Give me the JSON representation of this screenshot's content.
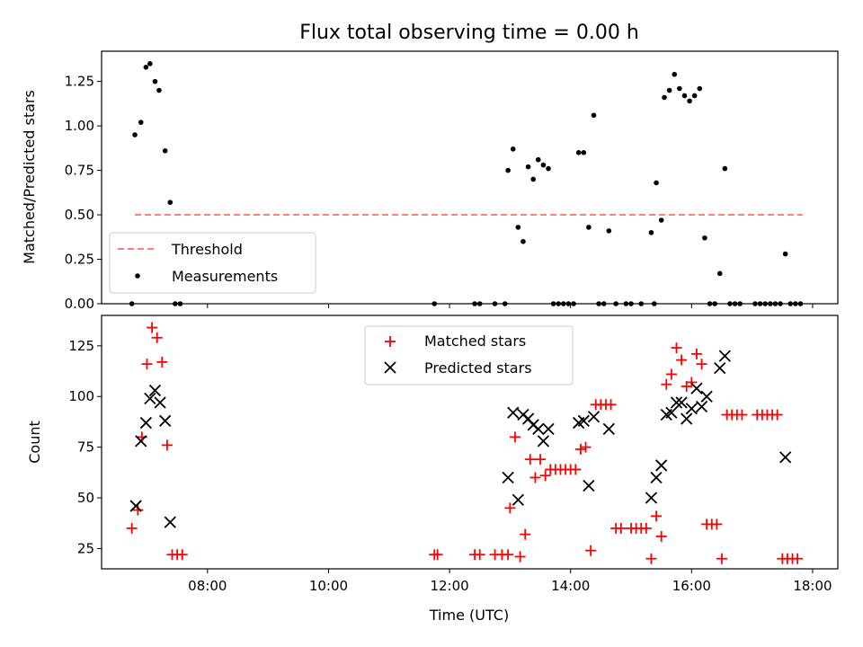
{
  "chart_data": [
    {
      "type": "scatter",
      "title": "Flux total observing time = 0.00 h",
      "xlabel": "",
      "ylabel": "Matched/Predicted stars",
      "xlim": [
        "06:15",
        "18:25"
      ],
      "ylim": [
        0,
        1.42
      ],
      "yticks": [
        0.0,
        0.25,
        0.5,
        0.75,
        1.0,
        1.25
      ],
      "ytick_labels": [
        "0.00",
        "0.25",
        "0.50",
        "0.75",
        "1.00",
        "1.25"
      ],
      "legend": {
        "placement": "lower-left",
        "entries": [
          "Threshold",
          "Measurements"
        ]
      },
      "threshold": {
        "name": "Threshold",
        "value": 0.5,
        "x_start": "06:48",
        "x_end": "17:50",
        "color": "#ff7f7f"
      },
      "series": [
        {
          "name": "Measurements",
          "color": "#000000",
          "points": [
            [
              "06:45",
              0.0
            ],
            [
              "06:48",
              0.95
            ],
            [
              "06:54",
              1.02
            ],
            [
              "06:59",
              1.33
            ],
            [
              "07:03",
              1.35
            ],
            [
              "07:08",
              1.25
            ],
            [
              "07:12",
              1.2
            ],
            [
              "07:18",
              0.86
            ],
            [
              "07:23",
              0.57
            ],
            [
              "07:28",
              0.0
            ],
            [
              "07:33",
              0.0
            ],
            [
              "11:45",
              0.0
            ],
            [
              "12:25",
              0.0
            ],
            [
              "12:30",
              0.0
            ],
            [
              "12:45",
              0.0
            ],
            [
              "12:55",
              0.0
            ],
            [
              "12:58",
              0.75
            ],
            [
              "13:03",
              0.87
            ],
            [
              "13:08",
              0.43
            ],
            [
              "13:13",
              0.35
            ],
            [
              "13:18",
              0.77
            ],
            [
              "13:23",
              0.7
            ],
            [
              "13:28",
              0.81
            ],
            [
              "13:33",
              0.78
            ],
            [
              "13:38",
              0.76
            ],
            [
              "13:43",
              0.0
            ],
            [
              "13:48",
              0.0
            ],
            [
              "13:53",
              0.0
            ],
            [
              "13:58",
              0.0
            ],
            [
              "14:03",
              0.0
            ],
            [
              "14:08",
              0.85
            ],
            [
              "14:13",
              0.85
            ],
            [
              "14:18",
              0.43
            ],
            [
              "14:23",
              1.06
            ],
            [
              "14:28",
              0.0
            ],
            [
              "14:33",
              0.0
            ],
            [
              "14:38",
              0.41
            ],
            [
              "14:45",
              0.0
            ],
            [
              "14:55",
              0.0
            ],
            [
              "15:00",
              0.0
            ],
            [
              "15:10",
              0.0
            ],
            [
              "15:20",
              0.4
            ],
            [
              "15:23",
              0.0
            ],
            [
              "15:25",
              0.68
            ],
            [
              "15:30",
              0.47
            ],
            [
              "15:33",
              1.16
            ],
            [
              "15:38",
              1.2
            ],
            [
              "15:43",
              1.29
            ],
            [
              "15:48",
              1.21
            ],
            [
              "15:53",
              1.17
            ],
            [
              "15:58",
              1.14
            ],
            [
              "16:03",
              1.17
            ],
            [
              "16:08",
              1.21
            ],
            [
              "16:13",
              0.37
            ],
            [
              "16:18",
              0.0
            ],
            [
              "16:23",
              0.0
            ],
            [
              "16:28",
              0.17
            ],
            [
              "16:33",
              0.76
            ],
            [
              "16:38",
              0.0
            ],
            [
              "16:43",
              0.0
            ],
            [
              "16:48",
              0.0
            ],
            [
              "17:03",
              0.0
            ],
            [
              "17:08",
              0.0
            ],
            [
              "17:13",
              0.0
            ],
            [
              "17:18",
              0.0
            ],
            [
              "17:23",
              0.0
            ],
            [
              "17:28",
              0.0
            ],
            [
              "17:33",
              0.28
            ],
            [
              "17:38",
              0.0
            ],
            [
              "17:43",
              0.0
            ],
            [
              "17:48",
              0.0
            ]
          ]
        }
      ]
    },
    {
      "type": "scatter",
      "title": "",
      "xlabel": "Time (UTC)",
      "ylabel": "Count",
      "xlim": [
        "06:15",
        "18:25"
      ],
      "ylim": [
        15,
        140
      ],
      "yticks": [
        25,
        50,
        75,
        100,
        125
      ],
      "ytick_labels": [
        "25",
        "50",
        "75",
        "100",
        "125"
      ],
      "xticks": [
        "08:00",
        "10:00",
        "12:00",
        "14:00",
        "16:00",
        "18:00"
      ],
      "xtick_labels": [
        "08:00",
        "10:00",
        "12:00",
        "14:00",
        "16:00",
        "18:00"
      ],
      "legend": {
        "placement": "upper-center",
        "entries": [
          "Matched stars",
          "Predicted stars"
        ]
      },
      "series": [
        {
          "name": "Matched stars",
          "marker": "plus",
          "color": "#ff0000",
          "points": [
            [
              "06:45",
              35
            ],
            [
              "06:51",
              44
            ],
            [
              "06:55",
              80
            ],
            [
              "07:00",
              116
            ],
            [
              "07:05",
              134
            ],
            [
              "07:10",
              129
            ],
            [
              "07:15",
              117
            ],
            [
              "07:20",
              76
            ],
            [
              "07:25",
              22
            ],
            [
              "07:30",
              22
            ],
            [
              "07:35",
              22
            ],
            [
              "11:45",
              22
            ],
            [
              "11:48",
              22
            ],
            [
              "12:25",
              22
            ],
            [
              "12:30",
              22
            ],
            [
              "12:45",
              22
            ],
            [
              "12:52",
              22
            ],
            [
              "12:58",
              22
            ],
            [
              "13:00",
              45
            ],
            [
              "13:05",
              80
            ],
            [
              "13:10",
              21
            ],
            [
              "13:15",
              32
            ],
            [
              "13:20",
              69
            ],
            [
              "13:25",
              60
            ],
            [
              "13:30",
              69
            ],
            [
              "13:35",
              61
            ],
            [
              "13:40",
              64
            ],
            [
              "13:45",
              64
            ],
            [
              "13:50",
              64
            ],
            [
              "13:55",
              64
            ],
            [
              "14:00",
              64
            ],
            [
              "14:05",
              64
            ],
            [
              "14:10",
              74
            ],
            [
              "14:15",
              75
            ],
            [
              "14:20",
              24
            ],
            [
              "14:25",
              96
            ],
            [
              "14:30",
              96
            ],
            [
              "14:35",
              96
            ],
            [
              "14:40",
              96
            ],
            [
              "14:45",
              35
            ],
            [
              "14:50",
              35
            ],
            [
              "15:00",
              35
            ],
            [
              "15:05",
              35
            ],
            [
              "15:10",
              35
            ],
            [
              "15:15",
              35
            ],
            [
              "15:20",
              20
            ],
            [
              "15:25",
              41
            ],
            [
              "15:30",
              31
            ],
            [
              "15:35",
              106
            ],
            [
              "15:40",
              111
            ],
            [
              "15:45",
              124
            ],
            [
              "15:50",
              118
            ],
            [
              "15:55",
              105
            ],
            [
              "16:00",
              107
            ],
            [
              "16:05",
              121
            ],
            [
              "16:10",
              116
            ],
            [
              "16:15",
              37
            ],
            [
              "16:20",
              37
            ],
            [
              "16:25",
              37
            ],
            [
              "16:30",
              20
            ],
            [
              "16:35",
              91
            ],
            [
              "16:40",
              91
            ],
            [
              "16:45",
              91
            ],
            [
              "16:50",
              91
            ],
            [
              "17:05",
              91
            ],
            [
              "17:10",
              91
            ],
            [
              "17:15",
              91
            ],
            [
              "17:20",
              91
            ],
            [
              "17:25",
              91
            ],
            [
              "17:30",
              20
            ],
            [
              "17:35",
              20
            ],
            [
              "17:40",
              20
            ],
            [
              "17:45",
              20
            ]
          ]
        },
        {
          "name": "Predicted stars",
          "marker": "x",
          "color": "#000000",
          "points": [
            [
              "06:49",
              46
            ],
            [
              "06:54",
              78
            ],
            [
              "06:59",
              87
            ],
            [
              "07:03",
              99
            ],
            [
              "07:08",
              103
            ],
            [
              "07:13",
              97
            ],
            [
              "07:18",
              88
            ],
            [
              "07:23",
              38
            ],
            [
              "12:58",
              60
            ],
            [
              "13:03",
              92
            ],
            [
              "13:08",
              49
            ],
            [
              "13:13",
              91
            ],
            [
              "13:18",
              89
            ],
            [
              "13:23",
              86
            ],
            [
              "13:28",
              84
            ],
            [
              "13:33",
              78
            ],
            [
              "13:38",
              84
            ],
            [
              "14:08",
              87
            ],
            [
              "14:13",
              88
            ],
            [
              "14:18",
              56
            ],
            [
              "14:23",
              90
            ],
            [
              "14:38",
              84
            ],
            [
              "15:20",
              50
            ],
            [
              "15:25",
              60
            ],
            [
              "15:30",
              66
            ],
            [
              "15:35",
              91
            ],
            [
              "15:40",
              92
            ],
            [
              "15:45",
              97
            ],
            [
              "15:50",
              97
            ],
            [
              "15:55",
              89
            ],
            [
              "16:00",
              94
            ],
            [
              "16:05",
              104
            ],
            [
              "16:10",
              95
            ],
            [
              "16:15",
              100
            ],
            [
              "16:28",
              114
            ],
            [
              "16:33",
              120
            ],
            [
              "17:33",
              70
            ]
          ]
        }
      ]
    }
  ]
}
